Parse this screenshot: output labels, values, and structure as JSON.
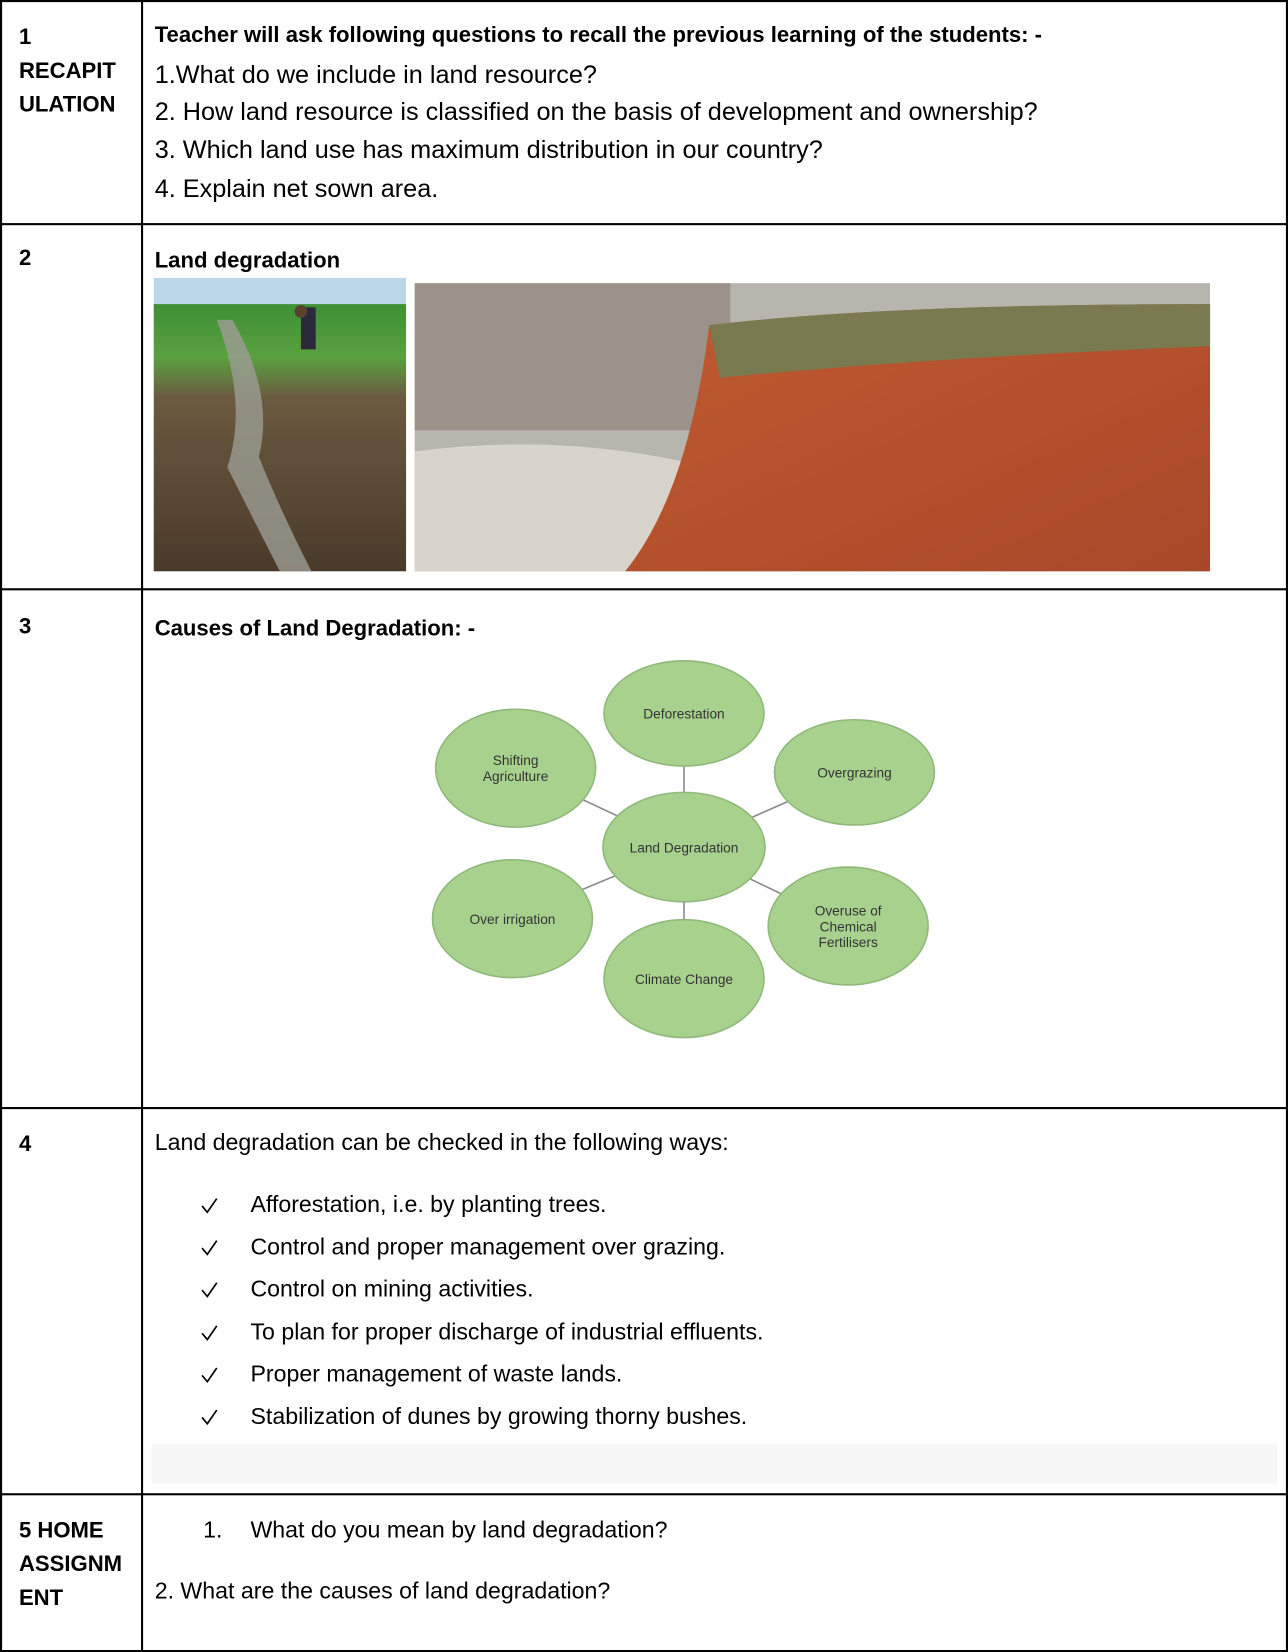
{
  "table": {
    "rows": [
      {
        "number": "1",
        "label": "RECAPITULATION",
        "heading": "Teacher will ask following questions to recall the previous learning of the students: -",
        "lines": [
          "1.What do we include in land resource?",
          "2. How land resource is classified on the basis of development and ownership?",
          "3. Which land use has maximum distribution in our country?",
          "4. Explain net sown area."
        ]
      },
      {
        "number": "2",
        "heading": "Land degradation"
      },
      {
        "number": "3",
        "heading": "Causes of Land Degradation: -",
        "diagram": {
          "center": "Land Degradation",
          "nodes": [
            "Deforestation",
            "Overgrazing",
            "Overuse of Chemical Fertilisers",
            "Climate Change",
            "Over irrigation",
            "Shifting Agriculture"
          ]
        }
      },
      {
        "number": "4",
        "intro": "Land degradation can be checked in the following ways:",
        "items": [
          "Afforestation, i.e. by planting trees.",
          "Control and proper management over grazing.",
          "Control on mining activities.",
          "To plan for proper discharge of industrial effluents.",
          "Proper management of waste lands.",
          "Stabilization of dunes by growing thorny bushes."
        ]
      },
      {
        "label": "5 HOME ASSIGNMENT",
        "questions": [
          {
            "number": "1.",
            "text": "What do you mean by land degradation?"
          },
          {
            "text": "2. What are the causes of land degradation?"
          }
        ]
      }
    ]
  }
}
